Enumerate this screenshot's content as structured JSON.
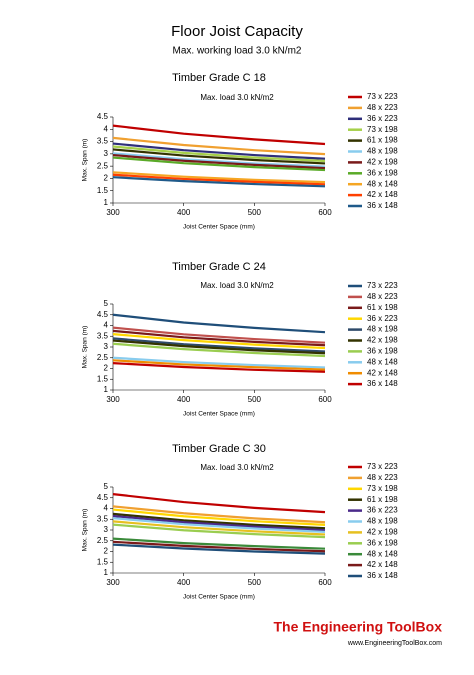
{
  "header": {
    "title": "Floor Joist Capacity",
    "subtitle": "Max. working load 3.0 kN/m2"
  },
  "chart_data": [
    {
      "type": "line",
      "title": "Timber Grade C 18",
      "subtitle": "Max. load 3.0 kN/m2",
      "x_label": "Joist Center Space (mm)",
      "y_label": "Max. Span (m)",
      "x": [
        300,
        400,
        500,
        600
      ],
      "xlim": [
        300,
        600
      ],
      "xticks": [
        300,
        400,
        500,
        600
      ],
      "ylim": [
        1,
        4.5
      ],
      "yticks": [
        1,
        1.5,
        2,
        2.5,
        3,
        3.5,
        4,
        4.5
      ],
      "grid": false,
      "series": [
        {
          "name": "73 x 223",
          "color": "#c00000",
          "values": [
            4.15,
            3.82,
            3.59,
            3.4
          ]
        },
        {
          "name": "48 x 223",
          "color": "#f0a030",
          "values": [
            3.65,
            3.36,
            3.15,
            2.99
          ]
        },
        {
          "name": "36 x 223",
          "color": "#2e2e7a",
          "values": [
            3.42,
            3.15,
            2.95,
            2.8
          ]
        },
        {
          "name": "73 x 198",
          "color": "#a6d04a",
          "values": [
            3.3,
            3.04,
            2.85,
            2.71
          ]
        },
        {
          "name": "61 x 198",
          "color": "#333300",
          "values": [
            3.18,
            2.93,
            2.75,
            2.61
          ]
        },
        {
          "name": "48 x 198",
          "color": "#88ccee",
          "values": [
            3.02,
            2.78,
            2.61,
            2.48
          ]
        },
        {
          "name": "42 x 198",
          "color": "#7a1a1a",
          "values": [
            2.95,
            2.72,
            2.55,
            2.42
          ]
        },
        {
          "name": "36 x 198",
          "color": "#5aaa28",
          "values": [
            2.85,
            2.62,
            2.46,
            2.34
          ]
        },
        {
          "name": "48 x 148",
          "color": "#f5a623",
          "values": [
            2.25,
            2.07,
            1.94,
            1.85
          ]
        },
        {
          "name": "42 x 148",
          "color": "#ff4000",
          "values": [
            2.15,
            1.98,
            1.86,
            1.76
          ]
        },
        {
          "name": "36 x 148",
          "color": "#1f5a8a",
          "values": [
            2.05,
            1.89,
            1.77,
            1.68
          ]
        }
      ]
    },
    {
      "type": "line",
      "title": "Timber Grade C 24",
      "subtitle": "Max. load 3.0 kN/m2",
      "x_label": "Joist Center Space (mm)",
      "y_label": "Max. Span (m)",
      "x": [
        300,
        400,
        500,
        600
      ],
      "xlim": [
        300,
        600
      ],
      "xticks": [
        300,
        400,
        500,
        600
      ],
      "ylim": [
        1,
        5
      ],
      "yticks": [
        1,
        1.5,
        2,
        2.5,
        3,
        3.5,
        4,
        4.5,
        5
      ],
      "grid": false,
      "series": [
        {
          "name": "73 x 223",
          "color": "#1f4e79",
          "values": [
            4.5,
            4.14,
            3.89,
            3.69
          ]
        },
        {
          "name": "48 x 223",
          "color": "#c0504d",
          "values": [
            3.9,
            3.59,
            3.37,
            3.2
          ]
        },
        {
          "name": "61 x 198",
          "color": "#7a1a1a",
          "values": [
            3.75,
            3.45,
            3.24,
            3.08
          ]
        },
        {
          "name": "36 x 223",
          "color": "#ffd700",
          "values": [
            3.6,
            3.32,
            3.11,
            2.95
          ]
        },
        {
          "name": "48 x 198",
          "color": "#2e4a6a",
          "values": [
            3.4,
            3.13,
            2.94,
            2.79
          ]
        },
        {
          "name": "42 x 198",
          "color": "#333300",
          "values": [
            3.3,
            3.04,
            2.85,
            2.71
          ]
        },
        {
          "name": "36 x 198",
          "color": "#9acd50",
          "values": [
            3.15,
            2.9,
            2.72,
            2.58
          ]
        },
        {
          "name": "48 x 148",
          "color": "#88ccee",
          "values": [
            2.5,
            2.3,
            2.16,
            2.05
          ]
        },
        {
          "name": "42 x 148",
          "color": "#f08c00",
          "values": [
            2.38,
            2.19,
            2.06,
            1.95
          ]
        },
        {
          "name": "36 x 148",
          "color": "#c00000",
          "values": [
            2.25,
            2.07,
            1.94,
            1.85
          ]
        }
      ]
    },
    {
      "type": "line",
      "title": "Timber Grade C 30",
      "subtitle": "Max. load 3.0 kN/m2",
      "x_label": "Joist Center Space (mm)",
      "y_label": "Max. Span (m)",
      "x": [
        300,
        400,
        500,
        600
      ],
      "xlim": [
        300,
        600
      ],
      "xticks": [
        300,
        400,
        500,
        600
      ],
      "ylim": [
        1,
        5
      ],
      "yticks": [
        1,
        1.5,
        2,
        2.5,
        3,
        3.5,
        4,
        4.5,
        5
      ],
      "grid": false,
      "series": [
        {
          "name": "73 x 223",
          "color": "#c00000",
          "values": [
            4.67,
            4.3,
            4.03,
            3.83
          ]
        },
        {
          "name": "48 x 223",
          "color": "#f0a030",
          "values": [
            4.1,
            3.78,
            3.54,
            3.36
          ]
        },
        {
          "name": "73 x 198",
          "color": "#ffd700",
          "values": [
            3.95,
            3.64,
            3.41,
            3.24
          ]
        },
        {
          "name": "61 x 198",
          "color": "#333300",
          "values": [
            3.75,
            3.45,
            3.24,
            3.08
          ]
        },
        {
          "name": "36 x 223",
          "color": "#4b2a8a",
          "values": [
            3.65,
            3.36,
            3.15,
            2.99
          ]
        },
        {
          "name": "48 x 198",
          "color": "#88ccee",
          "values": [
            3.55,
            3.27,
            3.07,
            2.91
          ]
        },
        {
          "name": "42 x 198",
          "color": "#e6c020",
          "values": [
            3.4,
            3.13,
            2.94,
            2.79
          ]
        },
        {
          "name": "36 x 198",
          "color": "#9acd50",
          "values": [
            3.25,
            2.99,
            2.81,
            2.67
          ]
        },
        {
          "name": "48 x 148",
          "color": "#3a8a3a",
          "values": [
            2.6,
            2.39,
            2.25,
            2.13
          ]
        },
        {
          "name": "42 x 148",
          "color": "#7a1a1a",
          "values": [
            2.45,
            2.26,
            2.12,
            2.01
          ]
        },
        {
          "name": "36 x 148",
          "color": "#1f4e79",
          "values": [
            2.32,
            2.14,
            2.0,
            1.9
          ]
        }
      ]
    }
  ],
  "footer": {
    "brand": "The Engineering ToolBox",
    "url": "www.EngineeringToolBox.com"
  }
}
